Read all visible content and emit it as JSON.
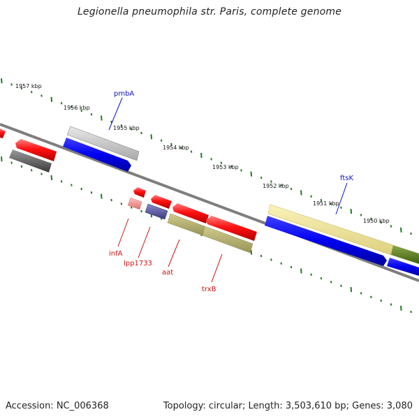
{
  "title": "Legionella pneumophila str. Paris, complete genome",
  "accession": "Accession: NC_006368",
  "topology": "Topology: circular; Length: 3,503,610 bp; Genes: 3,080",
  "colors": {
    "backbone": "#808080",
    "tick": "#1f7a1f",
    "forward_label": "#1010cc",
    "reverse_label": "#cc1010"
  },
  "scale_labels": [
    "1957 kbp",
    "1956 kbp",
    "1955 kbp",
    "1954 kbp",
    "1953 kbp",
    "1952 kbp",
    "1951 kbp",
    "1950 kbp"
  ],
  "forward_gene_labels": [
    "pmbA",
    "ftsK"
  ],
  "reverse_gene_labels": [
    "infA",
    "lpp1733",
    "aat",
    "trxB"
  ]
}
